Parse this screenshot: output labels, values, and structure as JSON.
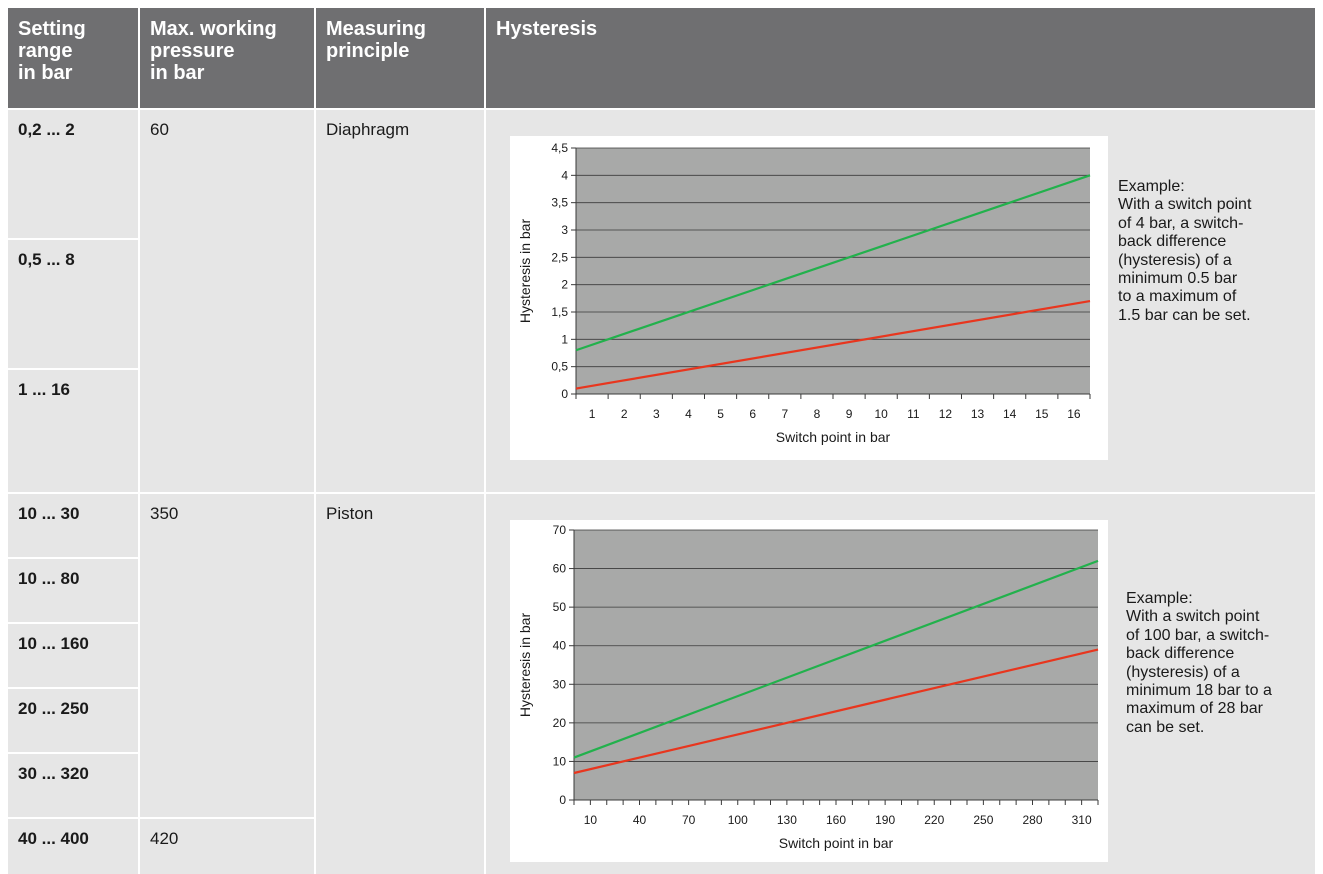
{
  "header": {
    "setting_range": [
      "Setting",
      "range",
      "in bar"
    ],
    "max_pressure": [
      "Max. working",
      "pressure",
      "in bar"
    ],
    "principle": [
      "Measuring",
      "principle"
    ],
    "hysteresis": "Hysteresis"
  },
  "group1": {
    "ranges": [
      "0,2 ... 2",
      "0,5 ... 8",
      "1 ... 16"
    ],
    "max_pressure": "60",
    "principle": "Diaphragm",
    "example": [
      "Example:",
      "With a switch point",
      "of 4 bar, a switch-",
      "back difference",
      "(hysteresis) of a",
      "minimum 0.5 bar",
      "to a maximum of",
      "1.5 bar can be set."
    ]
  },
  "group2": {
    "ranges": [
      "10 ... 30",
      "10 ... 80",
      "10 ... 160",
      "20 ... 250",
      "30 ... 320",
      "40 ... 400"
    ],
    "max_pressure_1": "350",
    "max_pressure_2": "420",
    "principle": "Piston",
    "example": [
      "Example:",
      "With a switch point",
      "of 100 bar, a switch-",
      "back difference",
      "(hysteresis) of a",
      "minimum 18 bar to a",
      "maximum of 28 bar",
      "can be set."
    ]
  },
  "colors": {
    "header_bg": "#6f6f71",
    "cell_bg": "#e6e6e6",
    "plot_bg": "#a8a9a8",
    "upper_line": "#22b14c",
    "lower_line": "#e8361e"
  },
  "chart_data": [
    {
      "type": "line",
      "xlabel": "Switch point in bar",
      "ylabel": "Hysteresis in bar",
      "x_ticks": [
        "1",
        "2",
        "3",
        "4",
        "5",
        "6",
        "7",
        "8",
        "9",
        "10",
        "11",
        "12",
        "13",
        "14",
        "15",
        "16"
      ],
      "y_ticks": [
        "0",
        "0,5",
        "1",
        "1,5",
        "2",
        "2,5",
        "3",
        "3,5",
        "4",
        "4,5"
      ],
      "ylim": [
        0,
        4.5
      ],
      "xlim": [
        0,
        16
      ],
      "grid": true,
      "series": [
        {
          "color": "#22b14c",
          "x": [
            0,
            16
          ],
          "y": [
            0.8,
            4.0
          ]
        },
        {
          "color": "#e8361e",
          "x": [
            0,
            16
          ],
          "y": [
            0.1,
            1.7
          ]
        }
      ]
    },
    {
      "type": "line",
      "xlabel": "Switch point in bar",
      "ylabel": "Hysteresis in bar",
      "x_ticks": [
        "10",
        "40",
        "70",
        "100",
        "130",
        "160",
        "190",
        "220",
        "250",
        "280",
        "310"
      ],
      "y_ticks": [
        "0",
        "10",
        "20",
        "30",
        "40",
        "50",
        "60",
        "70"
      ],
      "ylim": [
        0,
        70
      ],
      "xlim": [
        0,
        320
      ],
      "grid": true,
      "series": [
        {
          "color": "#22b14c",
          "x": [
            0,
            320
          ],
          "y": [
            11,
            62
          ]
        },
        {
          "color": "#e8361e",
          "x": [
            0,
            320
          ],
          "y": [
            7,
            39
          ]
        }
      ]
    }
  ]
}
